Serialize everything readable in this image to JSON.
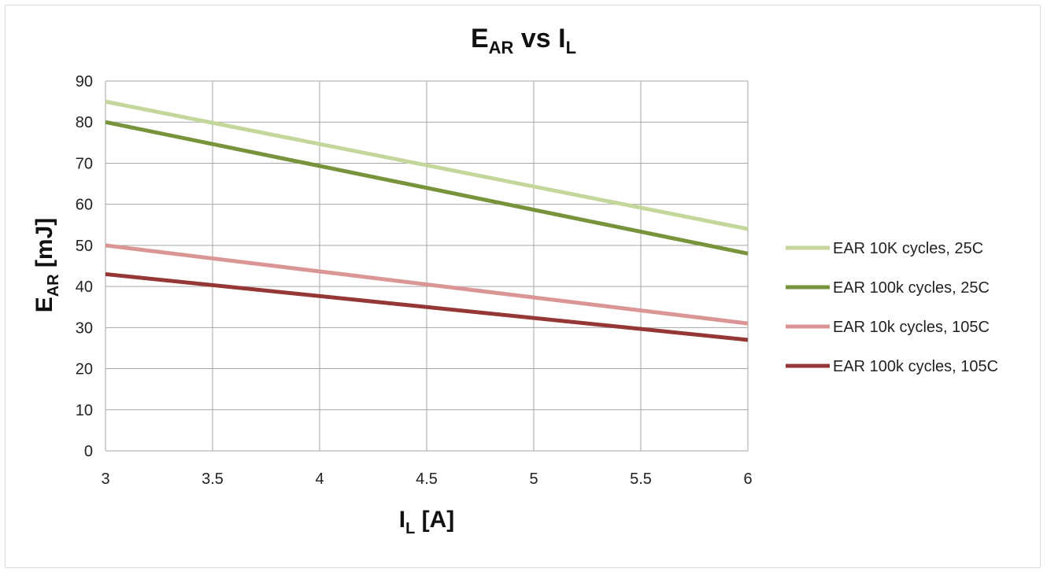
{
  "chart_data": {
    "type": "line",
    "title": {
      "main": "E",
      "sub": "AR",
      "mid": " vs I",
      "sub2": "L"
    },
    "xlabel": {
      "main": "I",
      "sub": "L",
      "rest": " [A]"
    },
    "ylabel": {
      "main": "E",
      "sub": "AR",
      "rest": " [mJ]"
    },
    "xlim": [
      3,
      6
    ],
    "ylim": [
      0,
      90
    ],
    "xticks": [
      3,
      3.5,
      4,
      4.5,
      5,
      5.5,
      6
    ],
    "xtick_labels": [
      "3",
      "3.5",
      "4",
      "4.5",
      "5",
      "5.5",
      "6"
    ],
    "yticks": [
      0,
      10,
      20,
      30,
      40,
      50,
      60,
      70,
      80,
      90
    ],
    "ytick_labels": [
      "0",
      "10",
      "20",
      "30",
      "40",
      "50",
      "60",
      "70",
      "80",
      "90"
    ],
    "grid": true,
    "legend_position": "right",
    "series": [
      {
        "name": "EAR 10K cycles, 25C",
        "color": "#c3d69b",
        "x": [
          3,
          6
        ],
        "y": [
          85,
          54
        ]
      },
      {
        "name": "EAR 100k cycles, 25C",
        "color": "#77933c",
        "x": [
          3,
          6
        ],
        "y": [
          80,
          48
        ]
      },
      {
        "name": "EAR 10k cycles, 105C",
        "color": "#d99694",
        "x": [
          3,
          6
        ],
        "y": [
          50,
          31
        ]
      },
      {
        "name": "EAR 100k cycles, 105C",
        "color": "#953735",
        "x": [
          3,
          6
        ],
        "y": [
          43,
          27
        ]
      }
    ]
  }
}
